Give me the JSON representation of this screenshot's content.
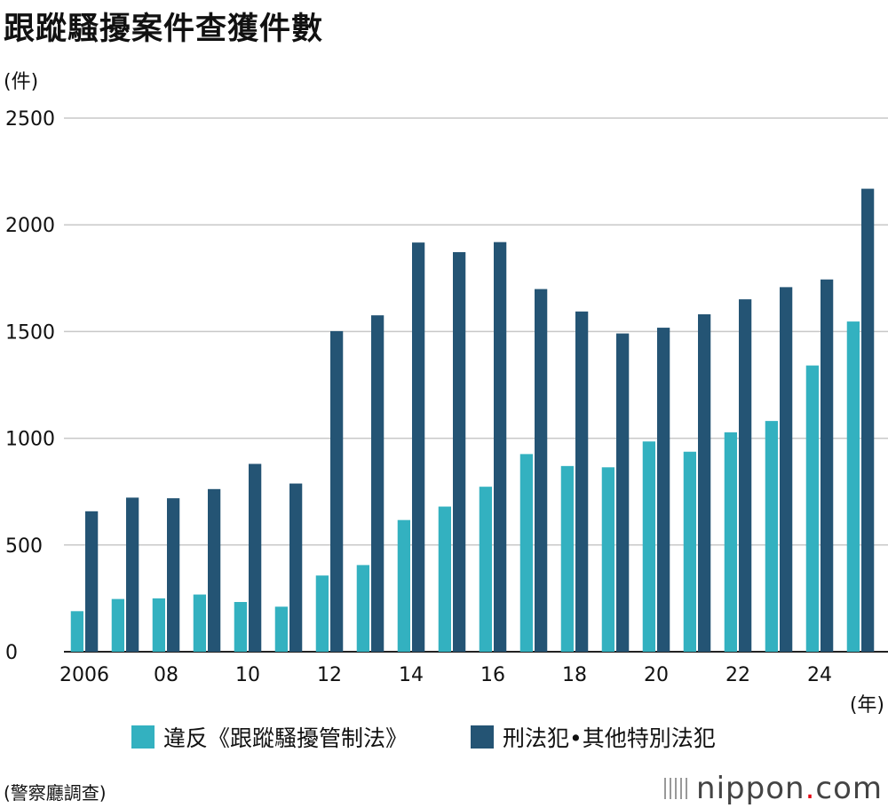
{
  "title": "跟蹤騷擾案件查獲件數",
  "unit": "(件)",
  "x_unit": "(年)",
  "source": "(警察廳調查)",
  "logo": {
    "main": "nippon",
    "dot": ".",
    "suffix": "com"
  },
  "legend": [
    {
      "label": "違反《跟蹤騷擾管制法》",
      "color": "#33b1c0"
    },
    {
      "label": "刑法犯•其他特別法犯",
      "color": "#245474"
    }
  ],
  "chart_data": {
    "type": "bar",
    "categories": [
      "2006",
      "2007",
      "2008",
      "2009",
      "2010",
      "2011",
      "2012",
      "2013",
      "2014",
      "2015",
      "2016",
      "2017",
      "2018",
      "2019",
      "2020",
      "2021",
      "2022",
      "2023",
      "2024",
      "2025"
    ],
    "x_tick_labels": [
      "2006",
      "",
      "08",
      "",
      "10",
      "",
      "12",
      "",
      "14",
      "",
      "16",
      "",
      "18",
      "",
      "20",
      "",
      "22",
      "",
      "24",
      ""
    ],
    "series": [
      {
        "name": "違反《跟蹤騷擾管制法》",
        "color": "#33b1c0",
        "values": [
          190,
          247,
          250,
          268,
          233,
          211,
          357,
          406,
          617,
          680,
          773,
          926,
          870,
          864,
          985,
          937,
          1028,
          1081,
          1341,
          1547
        ]
      },
      {
        "name": "刑法犯•其他特別法犯",
        "color": "#245474",
        "values": [
          658,
          722,
          719,
          762,
          880,
          788,
          1502,
          1576,
          1917,
          1872,
          1919,
          1699,
          1594,
          1491,
          1518,
          1581,
          1651,
          1708,
          1744,
          2169
        ]
      }
    ],
    "y_ticks": [
      0,
      500,
      1000,
      1500,
      2000,
      2500
    ],
    "ylim": [
      0,
      2500
    ],
    "grid": true,
    "legend_position": "bottom"
  }
}
